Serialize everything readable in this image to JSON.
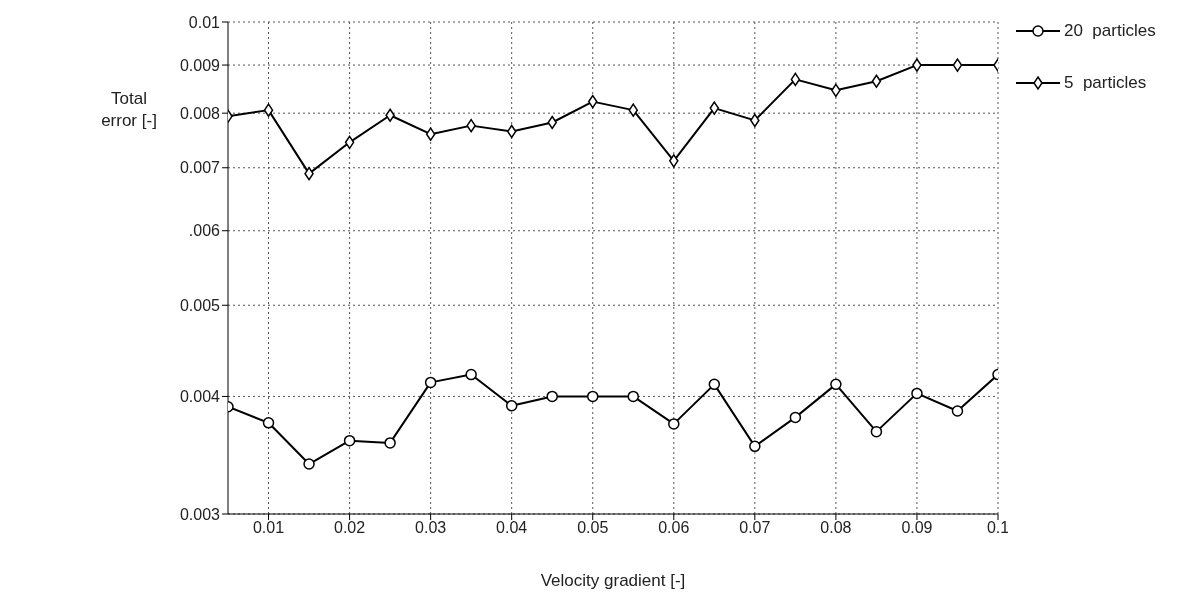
{
  "chart_data": {
    "type": "line",
    "xlabel": "Velocity gradient [-]",
    "ylabel": "Total error [-]",
    "x": [
      0.005,
      0.01,
      0.015,
      0.02,
      0.025,
      0.03,
      0.035,
      0.04,
      0.045,
      0.05,
      0.055,
      0.06,
      0.065,
      0.07,
      0.075,
      0.08,
      0.085,
      0.09,
      0.095,
      0.1
    ],
    "series": [
      {
        "name": "20  particles",
        "color": "#000000",
        "marker": "circle",
        "values": [
          0.0039,
          0.00375,
          0.00339,
          0.00359,
          0.00357,
          0.00414,
          0.00422,
          0.00391,
          0.004,
          0.004,
          0.004,
          0.00374,
          0.00412,
          0.00354,
          0.0038,
          0.00412,
          0.00367,
          0.00403,
          0.00386,
          0.00422
        ]
      },
      {
        "name": "5  particles",
        "color": "#000000",
        "marker": "diamond",
        "values": [
          0.00794,
          0.00806,
          0.0069,
          0.00745,
          0.00796,
          0.0076,
          0.00776,
          0.00765,
          0.00782,
          0.00823,
          0.00806,
          0.00712,
          0.0081,
          0.00786,
          0.00869,
          0.00846,
          0.00865,
          0.009,
          0.009,
          0.009
        ]
      }
    ],
    "xlim": [
      0.005,
      0.1
    ],
    "xticks": [
      0.01,
      0.02,
      0.03,
      0.04,
      0.05,
      0.06,
      0.07,
      0.08,
      0.09,
      0.1
    ],
    "ylim": [
      0.003,
      0.01
    ],
    "yticks": [
      0.003,
      0.004,
      0.005,
      {
        "value": 0.006,
        "label": ".006"
      },
      0.007,
      0.008,
      0.009,
      0.01
    ],
    "log": "y",
    "grid": true,
    "legend": "top right",
    "line_style": "solid"
  }
}
